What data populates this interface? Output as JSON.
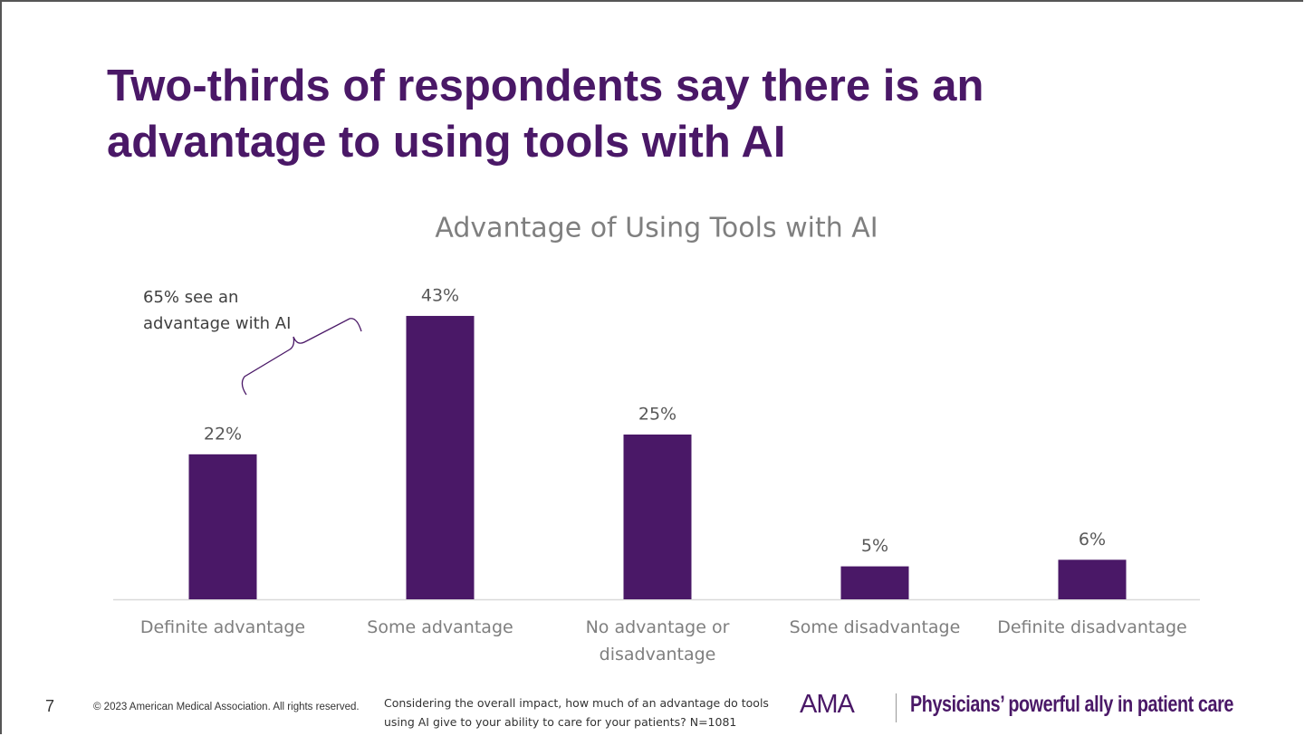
{
  "header": {
    "title": "Two-thirds of respondents say there is an advantage to using tools with AI"
  },
  "chart_data": {
    "type": "bar",
    "title": "Advantage of Using Tools with AI",
    "categories": [
      "Definite advantage",
      "Some advantage",
      "No advantage or disadvantage",
      "Some disadvantage",
      "Definite disadvantage"
    ],
    "values": [
      22,
      43,
      25,
      5,
      6
    ],
    "value_labels": [
      "22%",
      "43%",
      "25%",
      "5%",
      "6%"
    ],
    "color": "#4a1867",
    "annotation": "65% see an advantage with AI"
  },
  "footer": {
    "page_number": "7",
    "copyright": "© 2023 American Medical Association. All rights reserved.",
    "note": "Considering the overall impact, how much of an advantage do tools using AI give to your ability to care for your patients? N=1081",
    "logo": "AMA",
    "tagline": "Physicians’ powerful ally in patient care"
  }
}
